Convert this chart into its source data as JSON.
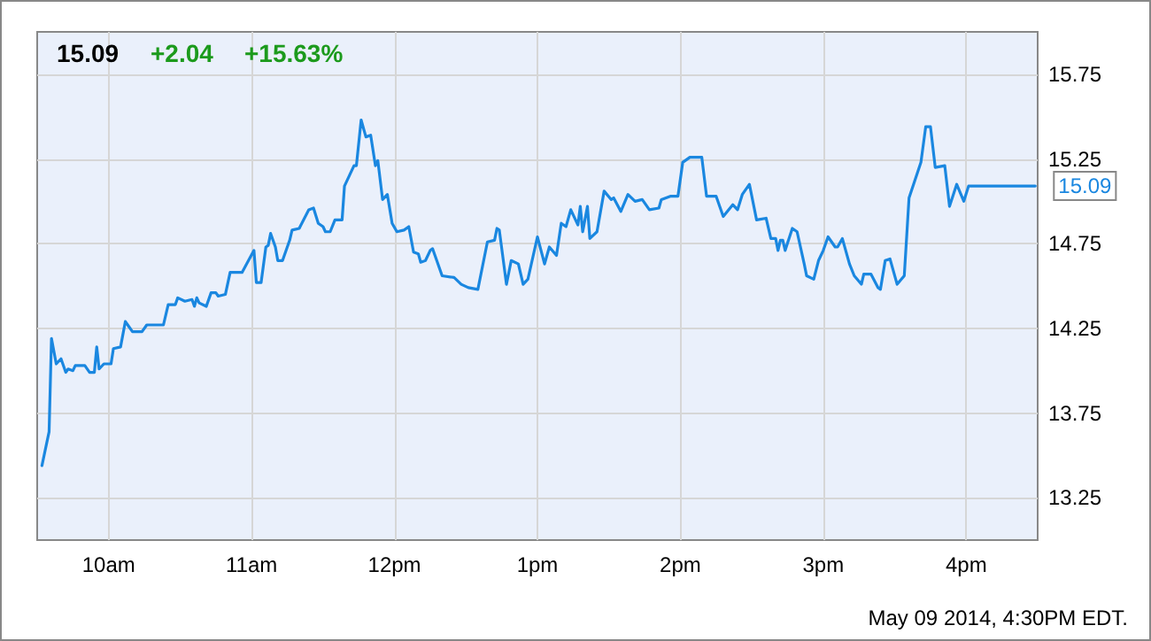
{
  "chart_data": {
    "type": "line",
    "annotations": [
      "15.09",
      "+2.04",
      "+15.63%",
      "May 09 2014, 4:30PM EDT.",
      {
        "text": "15.09",
        "x": "2014-05-09T16:29",
        "y": 15.09
      }
    ],
    "x": [
      "2014-05-09T09:32",
      "2014-05-09T09:35",
      "2014-05-09T09:36",
      "2014-05-09T09:38",
      "2014-05-09T09:40",
      "2014-05-09T09:42",
      "2014-05-09T09:43",
      "2014-05-09T09:45",
      "2014-05-09T09:46",
      "2014-05-09T09:50",
      "2014-05-09T09:52",
      "2014-05-09T09:54",
      "2014-05-09T09:55",
      "2014-05-09T09:56",
      "2014-05-09T09:58",
      "2014-05-09T10:01",
      "2014-05-09T10:02",
      "2014-05-09T10:05",
      "2014-05-09T10:07",
      "2014-05-09T10:08",
      "2014-05-09T10:10",
      "2014-05-09T10:14",
      "2014-05-09T10:16",
      "2014-05-09T10:20",
      "2014-05-09T10:23",
      "2014-05-09T10:25",
      "2014-05-09T10:28",
      "2014-05-09T10:29",
      "2014-05-09T10:32",
      "2014-05-09T10:35",
      "2014-05-09T10:36",
      "2014-05-09T10:37",
      "2014-05-09T10:38",
      "2014-05-09T10:41",
      "2014-05-09T10:43",
      "2014-05-09T10:45",
      "2014-05-09T10:46",
      "2014-05-09T10:49",
      "2014-05-09T10:51",
      "2014-05-09T10:54",
      "2014-05-09T10:56",
      "2014-05-09T11:01",
      "2014-05-09T11:02",
      "2014-05-09T11:04",
      "2014-05-09T11:06",
      "2014-05-09T11:07",
      "2014-05-09T11:08",
      "2014-05-09T11:10",
      "2014-05-09T11:11",
      "2014-05-09T11:13",
      "2014-05-09T11:16",
      "2014-05-09T11:17",
      "2014-05-09T11:20",
      "2014-05-09T11:24",
      "2014-05-09T11:26",
      "2014-05-09T11:28",
      "2014-05-09T11:30",
      "2014-05-09T11:31",
      "2014-05-09T11:33",
      "2014-05-09T11:35",
      "2014-05-09T11:38",
      "2014-05-09T11:39",
      "2014-05-09T11:43",
      "2014-05-09T11:44",
      "2014-05-09T11:46",
      "2014-05-09T11:48",
      "2014-05-09T11:50",
      "2014-05-09T11:52",
      "2014-05-09T11:53",
      "2014-05-09T11:55",
      "2014-05-09T11:57",
      "2014-05-09T11:59",
      "2014-05-09T12:01",
      "2014-05-09T12:04",
      "2014-05-09T12:06",
      "2014-05-09T12:08",
      "2014-05-09T12:10",
      "2014-05-09T12:11",
      "2014-05-09T12:13",
      "2014-05-09T12:15",
      "2014-05-09T12:16",
      "2014-05-09T12:20",
      "2014-05-09T12:25",
      "2014-05-09T12:28",
      "2014-05-09T12:31",
      "2014-05-09T12:35",
      "2014-05-09T12:39",
      "2014-05-09T12:42",
      "2014-05-09T12:43",
      "2014-05-09T12:44",
      "2014-05-09T12:47",
      "2014-05-09T12:49",
      "2014-05-09T12:52",
      "2014-05-09T12:54",
      "2014-05-09T12:56",
      "2014-05-09T13:00",
      "2014-05-09T13:03",
      "2014-05-09T13:05",
      "2014-05-09T13:08",
      "2014-05-09T13:10",
      "2014-05-09T13:12",
      "2014-05-09T13:14",
      "2014-05-09T13:17",
      "2014-05-09T13:18",
      "2014-05-09T13:19",
      "2014-05-09T13:21",
      "2014-05-09T13:22",
      "2014-05-09T13:25",
      "2014-05-09T13:28",
      "2014-05-09T13:31",
      "2014-05-09T13:32",
      "2014-05-09T13:35",
      "2014-05-09T13:38",
      "2014-05-09T13:41",
      "2014-05-09T13:44",
      "2014-05-09T13:47",
      "2014-05-09T13:51",
      "2014-05-09T13:52",
      "2014-05-09T13:56",
      "2014-05-09T13:59",
      "2014-05-09T14:01",
      "2014-05-09T14:04",
      "2014-05-09T14:09",
      "2014-05-09T14:11",
      "2014-05-09T14:15",
      "2014-05-09T14:18",
      "2014-05-09T14:22",
      "2014-05-09T14:24",
      "2014-05-09T14:26",
      "2014-05-09T14:29",
      "2014-05-09T14:32",
      "2014-05-09T14:36",
      "2014-05-09T14:38",
      "2014-05-09T14:40",
      "2014-05-09T14:41",
      "2014-05-09T14:42",
      "2014-05-09T14:43",
      "2014-05-09T14:44",
      "2014-05-09T14:47",
      "2014-05-09T14:49",
      "2014-05-09T14:52",
      "2014-05-09T14:53",
      "2014-05-09T14:56",
      "2014-05-09T14:58",
      "2014-05-09T15:00",
      "2014-05-09T15:02",
      "2014-05-09T15:05",
      "2014-05-09T15:06",
      "2014-05-09T15:08",
      "2014-05-09T15:11",
      "2014-05-09T15:13",
      "2014-05-09T15:16",
      "2014-05-09T15:17",
      "2014-05-09T15:20",
      "2014-05-09T15:23",
      "2014-05-09T15:24",
      "2014-05-09T15:26",
      "2014-05-09T15:28",
      "2014-05-09T15:31",
      "2014-05-09T15:34",
      "2014-05-09T15:36",
      "2014-05-09T15:41",
      "2014-05-09T15:43",
      "2014-05-09T15:45",
      "2014-05-09T15:47",
      "2014-05-09T15:51",
      "2014-05-09T15:53",
      "2014-05-09T15:56",
      "2014-05-09T15:59",
      "2014-05-09T16:01",
      "2014-05-09T16:29"
    ],
    "series": [
      {
        "color": "#1a87e0",
        "values": [
          13.44,
          13.64,
          14.19,
          14.04,
          14.07,
          13.99,
          14.01,
          14.0,
          14.03,
          14.03,
          13.99,
          13.99,
          14.14,
          14.01,
          14.04,
          14.04,
          14.13,
          14.14,
          14.29,
          14.27,
          14.23,
          14.23,
          14.27,
          14.27,
          14.27,
          14.39,
          14.39,
          14.43,
          14.41,
          14.42,
          14.38,
          14.43,
          14.4,
          14.38,
          14.46,
          14.46,
          14.44,
          14.45,
          14.58,
          14.58,
          14.58,
          14.71,
          14.52,
          14.52,
          14.73,
          14.74,
          14.81,
          14.73,
          14.65,
          14.65,
          14.77,
          14.83,
          14.84,
          14.95,
          14.96,
          14.87,
          14.85,
          14.82,
          14.82,
          14.89,
          14.89,
          15.09,
          15.21,
          15.21,
          15.48,
          15.38,
          15.39,
          15.21,
          15.24,
          15.01,
          15.04,
          14.87,
          14.82,
          14.83,
          14.85,
          14.7,
          14.69,
          14.64,
          14.65,
          14.71,
          14.72,
          14.56,
          14.55,
          14.51,
          14.49,
          14.48,
          14.76,
          14.77,
          14.84,
          14.83,
          14.51,
          14.65,
          14.63,
          14.51,
          14.54,
          14.79,
          14.63,
          14.73,
          14.68,
          14.87,
          14.85,
          14.95,
          14.86,
          14.97,
          14.82,
          14.97,
          14.78,
          14.82,
          15.06,
          15.01,
          15.02,
          14.94,
          15.04,
          15.0,
          15.01,
          14.95,
          14.96,
          15.01,
          15.03,
          15.03,
          15.23,
          15.26,
          15.26,
          15.03,
          15.03,
          14.91,
          14.98,
          14.95,
          15.04,
          15.1,
          14.89,
          14.9,
          14.78,
          14.78,
          14.71,
          14.77,
          14.77,
          14.71,
          14.84,
          14.82,
          14.63,
          14.56,
          14.54,
          14.65,
          14.71,
          14.79,
          14.73,
          14.73,
          14.78,
          14.63,
          14.56,
          14.51,
          14.57,
          14.57,
          14.49,
          14.48,
          14.65,
          14.66,
          14.51,
          14.56,
          15.02,
          15.23,
          15.44,
          15.44,
          15.2,
          15.21,
          14.97,
          15.1,
          15.0,
          15.09,
          15.09
        ]
      }
    ],
    "xlim": [
      "2014-05-09T09:30",
      "2014-05-09T16:30"
    ],
    "xticks": [
      {
        "value": "2014-05-09T10:00",
        "label": "10am"
      },
      {
        "value": "2014-05-09T11:00",
        "label": "11am"
      },
      {
        "value": "2014-05-09T12:00",
        "label": "12pm"
      },
      {
        "value": "2014-05-09T13:00",
        "label": "1pm"
      },
      {
        "value": "2014-05-09T14:00",
        "label": "2pm"
      },
      {
        "value": "2014-05-09T15:00",
        "label": "3pm"
      },
      {
        "value": "2014-05-09T16:00",
        "label": "4pm"
      }
    ],
    "ylim": [
      13.0,
      16.0
    ],
    "yticks": [
      13.25,
      13.75,
      14.25,
      14.75,
      15.25,
      15.75
    ],
    "grid": true,
    "marker": "none",
    "line_style": "solid"
  }
}
